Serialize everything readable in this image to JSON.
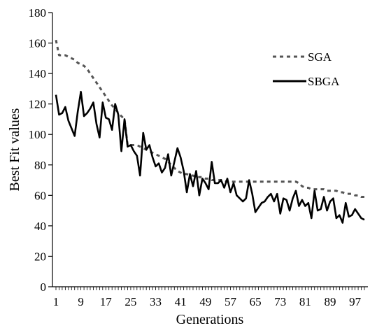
{
  "chart_data": {
    "type": "line",
    "title": "",
    "xlabel": "Generations",
    "ylabel": "Best Fit values",
    "xlim": [
      1,
      100
    ],
    "ylim": [
      0,
      180
    ],
    "x_tick_labels": [
      "1",
      "9",
      "17",
      "25",
      "33",
      "41",
      "49",
      "57",
      "65",
      "73",
      "81",
      "89",
      "97"
    ],
    "y_tick_labels": [
      "0",
      "20",
      "40",
      "60",
      "80",
      "100",
      "120",
      "140",
      "160",
      "180"
    ],
    "legend_position": "top-right",
    "grid": false,
    "x": [
      1,
      2,
      3,
      4,
      5,
      6,
      7,
      8,
      9,
      10,
      11,
      12,
      13,
      14,
      15,
      16,
      17,
      18,
      19,
      20,
      21,
      22,
      23,
      24,
      25,
      26,
      27,
      28,
      29,
      30,
      31,
      32,
      33,
      34,
      35,
      36,
      37,
      38,
      39,
      40,
      41,
      42,
      43,
      44,
      45,
      46,
      47,
      48,
      49,
      50,
      51,
      52,
      53,
      54,
      55,
      56,
      57,
      58,
      59,
      60,
      61,
      62,
      63,
      64,
      65,
      66,
      67,
      68,
      69,
      70,
      71,
      72,
      73,
      74,
      75,
      76,
      77,
      78,
      79,
      80,
      81,
      82,
      83,
      84,
      85,
      86,
      87,
      88,
      89,
      90,
      91,
      92,
      93,
      94,
      95,
      96,
      97,
      98,
      99,
      100
    ],
    "series": [
      {
        "name": "SGA",
        "style": "dotted",
        "color": "#555555",
        "values": [
          162,
          152,
          152,
          152,
          151,
          150,
          149,
          147,
          146,
          145,
          143,
          140,
          137,
          134,
          131,
          128,
          125,
          122,
          119,
          117,
          114,
          112,
          110,
          93,
          93,
          93,
          93,
          92,
          91,
          90,
          89,
          88,
          87,
          86,
          85,
          84,
          82,
          80,
          78,
          76,
          75,
          74,
          74,
          73,
          73,
          72,
          72,
          72,
          71,
          71,
          70,
          70,
          70,
          70,
          70,
          69,
          69,
          69,
          69,
          69,
          69,
          69,
          69,
          69,
          69,
          69,
          69,
          69,
          69,
          69,
          69,
          69,
          69,
          69,
          69,
          69,
          69,
          69,
          68,
          66,
          65,
          65,
          64,
          64,
          64,
          64,
          64,
          63,
          63,
          63,
          63,
          62,
          62,
          61,
          61,
          61,
          60,
          60,
          59,
          59
        ]
      },
      {
        "name": "SBGA",
        "style": "solid",
        "color": "#000000",
        "values": [
          126,
          113,
          114,
          118,
          109,
          104,
          99,
          115,
          128,
          112,
          114,
          117,
          121,
          107,
          98,
          121,
          111,
          110,
          103,
          120,
          113,
          89,
          110,
          92,
          93,
          89,
          86,
          73,
          101,
          90,
          93,
          85,
          79,
          81,
          75,
          78,
          87,
          73,
          82,
          91,
          85,
          76,
          62,
          74,
          66,
          76,
          60,
          71,
          68,
          64,
          82,
          68,
          68,
          70,
          65,
          71,
          62,
          68,
          60,
          58,
          56,
          58,
          70,
          61,
          49,
          52,
          55,
          56,
          59,
          61,
          56,
          61,
          48,
          58,
          57,
          50,
          58,
          63,
          53,
          57,
          53,
          55,
          45,
          63,
          50,
          51,
          59,
          50,
          56,
          58,
          45,
          47,
          42,
          55,
          46,
          47,
          51,
          48,
          45,
          44
        ]
      }
    ]
  }
}
